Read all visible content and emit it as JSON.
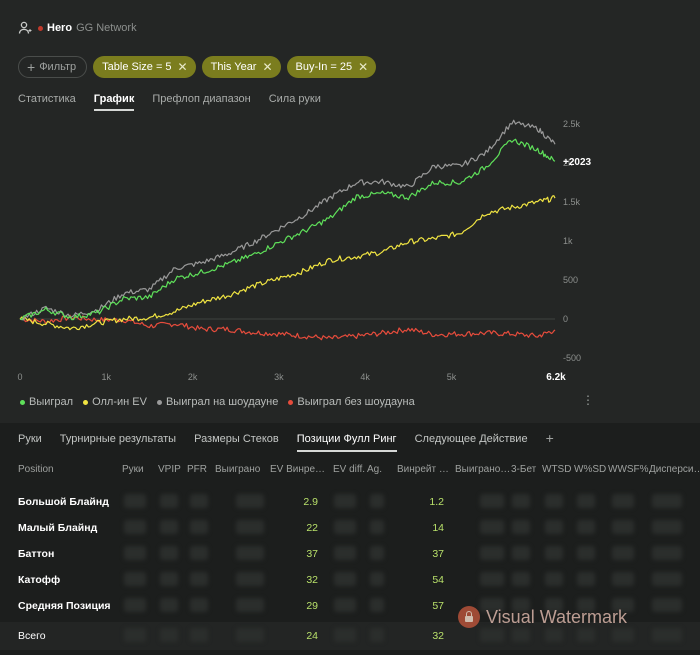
{
  "header": {
    "player_name": "Hero",
    "network": "GG Network"
  },
  "filters": {
    "add_label": "Фильтр",
    "chips": [
      "Table Size = 5",
      "This Year",
      "Buy-In = 25"
    ]
  },
  "top_tabs": [
    "Статистика",
    "График",
    "Префлоп диапазон",
    "Сила руки"
  ],
  "top_tab_active": "График",
  "chart_data": {
    "type": "line",
    "x_ticks": [
      "0",
      "1k",
      "2k",
      "3k",
      "4k",
      "5k",
      "6.2k"
    ],
    "y_ticks": [
      "2.5k",
      "2k",
      "1.5k",
      "1k",
      "500",
      "0",
      "-500"
    ],
    "xlim": [
      0,
      6200
    ],
    "ylim": [
      -500,
      2500
    ],
    "end_label": "+2023",
    "colors": {
      "won": "#5fe05a",
      "allin_ev": "#f0e442",
      "showdown": "#9a9a9a",
      "non_showdown": "#e74c3c"
    },
    "series": [
      {
        "name": "Выиграл",
        "key": "won",
        "x": [
          0,
          300,
          600,
          900,
          1200,
          1500,
          1800,
          2100,
          2400,
          2700,
          3000,
          3300,
          3600,
          3900,
          4200,
          4500,
          4800,
          5100,
          5400,
          5700,
          6000,
          6200
        ],
        "values": [
          0,
          120,
          20,
          80,
          260,
          280,
          520,
          600,
          700,
          820,
          980,
          1130,
          1300,
          1570,
          1610,
          1560,
          1750,
          1750,
          1950,
          2300,
          2170,
          2023
        ]
      },
      {
        "name": "Олл-ин EV",
        "key": "allin_ev",
        "x": [
          0,
          300,
          600,
          900,
          1200,
          1500,
          1800,
          2100,
          2400,
          2700,
          3000,
          3300,
          3600,
          3900,
          4200,
          4500,
          4800,
          5100,
          5400,
          5700,
          6000,
          6200
        ],
        "values": [
          0,
          -60,
          -120,
          -50,
          0,
          20,
          100,
          220,
          300,
          420,
          520,
          620,
          760,
          800,
          860,
          990,
          1030,
          1100,
          1360,
          1430,
          1500,
          1550
        ]
      },
      {
        "name": "Выиграл на шоудауне",
        "key": "showdown",
        "x": [
          0,
          300,
          600,
          900,
          1200,
          1500,
          1800,
          2100,
          2400,
          2700,
          3000,
          3300,
          3600,
          3900,
          4200,
          4500,
          4800,
          5100,
          5400,
          5700,
          6000,
          6200
        ],
        "values": [
          0,
          140,
          40,
          120,
          330,
          380,
          650,
          720,
          830,
          980,
          1160,
          1340,
          1560,
          1750,
          1760,
          1690,
          1960,
          1960,
          2130,
          2520,
          2440,
          2240
        ]
      },
      {
        "name": "Выиграл без шоудауна",
        "key": "non_showdown",
        "x": [
          0,
          300,
          600,
          900,
          1200,
          1500,
          1800,
          2100,
          2400,
          2700,
          3000,
          3300,
          3600,
          3900,
          4200,
          4500,
          4800,
          5100,
          5400,
          5700,
          6000,
          6200
        ],
        "values": [
          0,
          -30,
          20,
          -10,
          -10,
          -90,
          -60,
          -130,
          -130,
          -170,
          -190,
          -220,
          -250,
          -220,
          -180,
          -130,
          -200,
          -190,
          -180,
          -190,
          -220,
          -140
        ]
      }
    ]
  },
  "bottom_tabs": [
    "Руки",
    "Турнирные результаты",
    "Размеры Стеков",
    "Позиции Фулл Ринг",
    "Следующее Действие"
  ],
  "bottom_tab_active": "Позиции Фулл Ринг",
  "table": {
    "columns": [
      "Position",
      "Руки",
      "VPIP",
      "PFR",
      "Выиграно",
      "EV Винре…",
      "EV diff.",
      "Ag.",
      "Винрейт …",
      "Выиграно…",
      "3-Бет",
      "WTSD",
      "W%SD",
      "WWSF%",
      "Дисперси…"
    ],
    "rows": [
      {
        "position": "Большой Блайнд",
        "ev_winrate": "2.9",
        "winrate": "1.2"
      },
      {
        "position": "Малый Блайнд",
        "ev_winrate": "22",
        "winrate": "14"
      },
      {
        "position": "Баттон",
        "ev_winrate": "37",
        "winrate": "37"
      },
      {
        "position": "Катофф",
        "ev_winrate": "32",
        "winrate": "54"
      },
      {
        "position": "Средняя Позиция",
        "ev_winrate": "29",
        "winrate": "57"
      }
    ],
    "total": {
      "position": "Всего",
      "ev_winrate": "24",
      "winrate": "32"
    }
  },
  "watermark": "Visual Watermark"
}
